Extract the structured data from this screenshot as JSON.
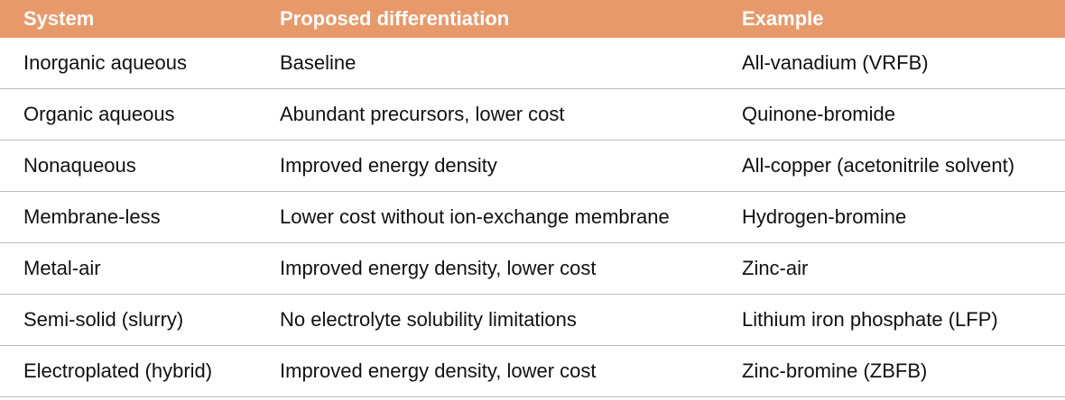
{
  "table": {
    "headers": [
      "System",
      "Proposed differentiation",
      "Example"
    ],
    "rows": [
      [
        "Inorganic aqueous",
        "Baseline",
        "All-vanadium (VRFB)"
      ],
      [
        "Organic aqueous",
        "Abundant precursors, lower cost",
        "Quinone-bromide"
      ],
      [
        "Nonaqueous",
        "Improved energy density",
        "All-copper (acetonitrile solvent)"
      ],
      [
        "Membrane-less",
        "Lower cost without ion-exchange membrane",
        "Hydrogen-bromine"
      ],
      [
        "Metal-air",
        "Improved energy density, lower cost",
        "Zinc-air"
      ],
      [
        "Semi-solid (slurry)",
        "No electrolyte solubility limitations",
        "Lithium iron phosphate (LFP)"
      ],
      [
        "Electroplated (hybrid)",
        "Improved energy density, lower cost",
        "Zinc-bromine (ZBFB)"
      ]
    ]
  },
  "colors": {
    "header_background": "#e8996a",
    "header_text": "#ffffff",
    "row_divider": "#bdbdbd"
  }
}
